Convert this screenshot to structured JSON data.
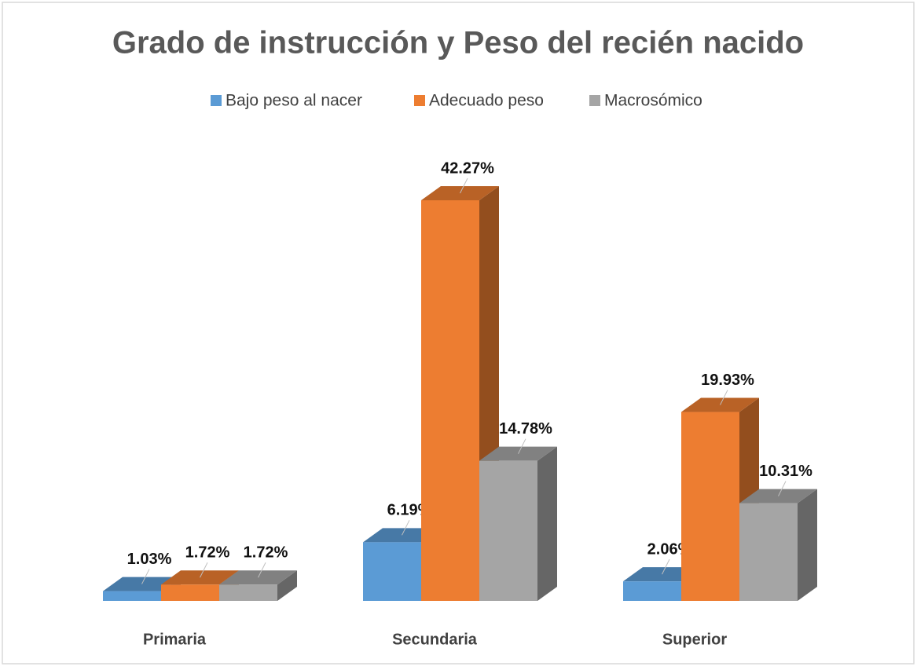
{
  "chart_data": {
    "type": "bar3d",
    "title": "Grado de instrucción y Peso del recién nacido",
    "categories": [
      "Primaria",
      "Secundaria",
      "Superior"
    ],
    "series": [
      {
        "name": "Bajo peso al nacer",
        "color": "#5b9bd5",
        "values": [
          1.03,
          6.19,
          2.06
        ],
        "value_labels": [
          "1.03%",
          "6.19%",
          "2.06%"
        ]
      },
      {
        "name": "Adecuado peso",
        "color": "#ed7d31",
        "values": [
          1.72,
          42.27,
          19.93
        ],
        "value_labels": [
          "1.72%",
          "42.27%",
          "19.93%"
        ]
      },
      {
        "name": "Macrosómico",
        "color": "#a5a5a5",
        "values": [
          1.72,
          14.78,
          10.31
        ],
        "value_labels": [
          "1.72%",
          "14.78%",
          "10.31%"
        ]
      }
    ],
    "legend": "top"
  }
}
